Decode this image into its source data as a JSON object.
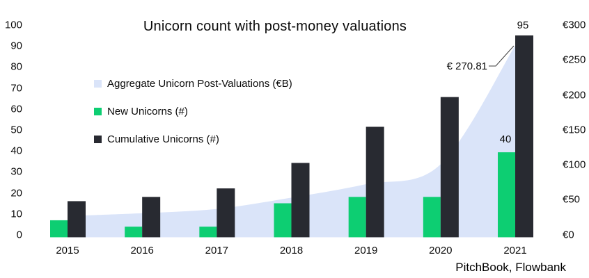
{
  "chart": {
    "title": "Unicorn count with post-money valuations",
    "source": "PitchBook, Flowbank"
  },
  "colors": {
    "area": "#DAE4F9",
    "new": "#0DCE72",
    "cumulative": "#282A31",
    "leader_line": "#3d3d3d"
  },
  "legend": {
    "items": [
      {
        "label": "Aggregate Unicorn Post-Valuations (€B)",
        "swatch": "area"
      },
      {
        "label": "New Unicorns (#)",
        "swatch": "new"
      },
      {
        "label": "Cumulative Unicorns (#)",
        "swatch": "cumulative"
      }
    ]
  },
  "chart_data": {
    "type": "combo",
    "title": "Unicorn count with post-money valuations",
    "categories": [
      "2015",
      "2016",
      "2017",
      "2018",
      "2019",
      "2020",
      "2021"
    ],
    "series": [
      {
        "name": "Aggregate Unicorn Post-Valuations (€B)",
        "type": "area",
        "axis": "right",
        "values": [
          30,
          34,
          40,
          56,
          75,
          103,
          270.81
        ]
      },
      {
        "name": "New Unicorns (#)",
        "type": "bar",
        "axis": "left",
        "values": [
          8,
          5,
          5,
          16,
          19,
          19,
          40
        ]
      },
      {
        "name": "Cumulative Unicorns (#)",
        "type": "bar",
        "axis": "left",
        "values": [
          17,
          19,
          23,
          35,
          52,
          66,
          95
        ]
      }
    ],
    "left_axis": {
      "range": [
        0,
        100
      ],
      "ticks": [
        {
          "label": "0",
          "value": 0
        },
        {
          "label": "10",
          "value": 10
        },
        {
          "label": "20",
          "value": 20
        },
        {
          "label": "30",
          "value": 30
        },
        {
          "label": "40",
          "value": 40
        },
        {
          "label": "50",
          "value": 50
        },
        {
          "label": "60",
          "value": 60
        },
        {
          "label": "70",
          "value": 70
        },
        {
          "label": "80",
          "value": 80
        },
        {
          "label": "90",
          "value": 90
        },
        {
          "label": "100",
          "value": 100
        }
      ]
    },
    "right_axis": {
      "range": [
        0,
        300
      ],
      "ticks": [
        {
          "label": "€0",
          "value": 0
        },
        {
          "label": "€50",
          "value": 50
        },
        {
          "label": "€100",
          "value": 100
        },
        {
          "label": "€150",
          "value": 150
        },
        {
          "label": "€200",
          "value": 200
        },
        {
          "label": "€250",
          "value": 250
        },
        {
          "label": "€300",
          "value": 300
        }
      ]
    },
    "annotations": {
      "valuation_callout": "€ 270.81",
      "cumulative_2021_label": "95",
      "new_2021_label": "40"
    },
    "grid": false,
    "legend_position": "inside-top-left"
  }
}
